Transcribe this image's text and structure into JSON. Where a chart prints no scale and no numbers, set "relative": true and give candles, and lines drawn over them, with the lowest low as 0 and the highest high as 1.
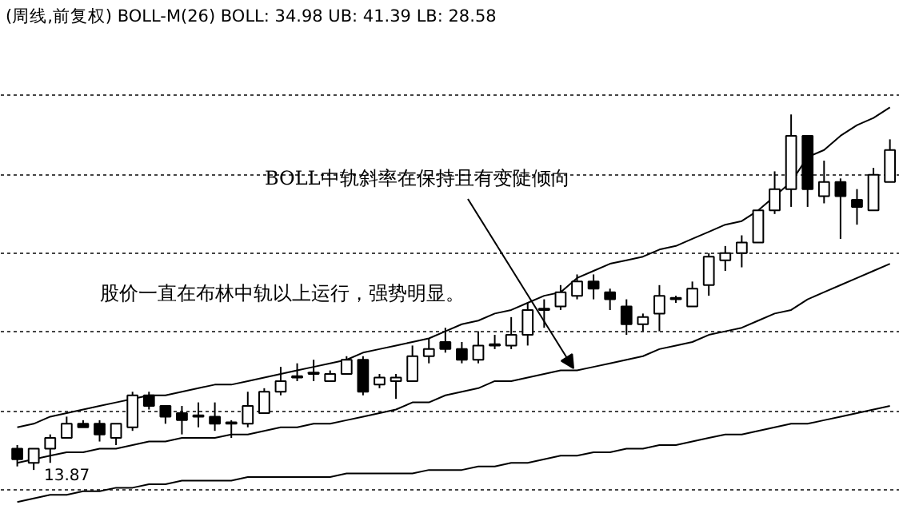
{
  "chart_data": {
    "type": "candlestick",
    "title": "(周线,前复权) BOLL-M(26) BOLL: 34.98 UB: 41.39 LB: 28.58",
    "relative": true,
    "grid": "y",
    "color": "#000000",
    "annotations": [
      "BOLL中轨斜率在保持且有变陡倾向",
      "股价一直在布林中轨以上运行，强势明显。",
      "13.87"
    ],
    "categories": [
      null,
      null,
      null,
      null,
      null,
      null,
      null,
      null,
      null,
      null,
      null,
      null,
      null,
      null,
      null,
      null,
      null,
      null,
      null,
      null,
      null,
      null,
      null,
      null,
      null,
      null,
      null,
      null,
      null,
      null,
      null,
      null,
      null,
      null,
      null,
      null,
      null,
      null,
      null,
      null,
      null,
      null,
      null,
      null,
      null,
      null,
      null,
      null,
      null,
      null,
      null,
      null,
      null,
      null
    ],
    "ohlc": [
      [
        0.06,
        0.07,
        0.01,
        0.03
      ],
      [
        0.02,
        0.06,
        0,
        0.06
      ],
      [
        0.06,
        0.1,
        0.02,
        0.09
      ],
      [
        0.09,
        0.15,
        0.09,
        0.13
      ],
      [
        0.13,
        0.14,
        0.12,
        0.12
      ],
      [
        0.13,
        0.14,
        0.08,
        0.1
      ],
      [
        0.09,
        0.13,
        0.07,
        0.13
      ],
      [
        0.12,
        0.22,
        0.11,
        0.21
      ],
      [
        0.21,
        0.22,
        0.17,
        0.18
      ],
      [
        0.18,
        0.18,
        0.13,
        0.15
      ],
      [
        0.16,
        0.18,
        0.1,
        0.14
      ],
      [
        0.15,
        0.19,
        0.12,
        0.15
      ],
      [
        0.15,
        0.19,
        0.11,
        0.13
      ],
      [
        0.13,
        0.14,
        0.09,
        0.13
      ],
      [
        0.13,
        0.22,
        0.12,
        0.18
      ],
      [
        0.16,
        0.23,
        0.16,
        0.22
      ],
      [
        0.22,
        0.29,
        0.21,
        0.25
      ],
      [
        0.26,
        0.3,
        0.25,
        0.26
      ],
      [
        0.27,
        0.31,
        0.25,
        0.27
      ],
      [
        0.25,
        0.28,
        0.25,
        0.27
      ],
      [
        0.27,
        0.32,
        0.27,
        0.31
      ],
      [
        0.31,
        0.32,
        0.21,
        0.22
      ],
      [
        0.24,
        0.27,
        0.23,
        0.26
      ],
      [
        0.25,
        0.27,
        0.2,
        0.26
      ],
      [
        0.25,
        0.35,
        0.25,
        0.32
      ],
      [
        0.32,
        0.37,
        0.3,
        0.34
      ],
      [
        0.36,
        0.4,
        0.33,
        0.34
      ],
      [
        0.34,
        0.36,
        0.3,
        0.31
      ],
      [
        0.31,
        0.39,
        0.3,
        0.35
      ],
      [
        0.35,
        0.38,
        0.34,
        0.35
      ],
      [
        0.35,
        0.43,
        0.34,
        0.38
      ],
      [
        0.38,
        0.47,
        0.35,
        0.45
      ],
      [
        0.45,
        0.48,
        0.4,
        0.45
      ],
      [
        0.46,
        0.52,
        0.45,
        0.5
      ],
      [
        0.49,
        0.55,
        0.48,
        0.53
      ],
      [
        0.53,
        0.55,
        0.48,
        0.51
      ],
      [
        0.5,
        0.51,
        0.45,
        0.48
      ],
      [
        0.46,
        0.48,
        0.38,
        0.41
      ],
      [
        0.41,
        0.44,
        0.39,
        0.43
      ],
      [
        0.44,
        0.52,
        0.39,
        0.49
      ],
      [
        0.48,
        0.49,
        0.47,
        0.48
      ],
      [
        0.46,
        0.53,
        0.46,
        0.51
      ],
      [
        0.52,
        0.61,
        0.49,
        0.6
      ],
      [
        0.59,
        0.63,
        0.56,
        0.61
      ],
      [
        0.61,
        0.66,
        0.57,
        0.64
      ],
      [
        0.64,
        0.73,
        0.64,
        0.73
      ],
      [
        0.73,
        0.84,
        0.72,
        0.79
      ],
      [
        0.79,
        1,
        0.74,
        0.94
      ],
      [
        0.94,
        0.94,
        0.74,
        0.79
      ],
      [
        0.77,
        0.87,
        0.75,
        0.81
      ],
      [
        0.81,
        0.82,
        0.65,
        0.77
      ],
      [
        0.76,
        0.79,
        0.69,
        0.74
      ],
      [
        0.73,
        0.85,
        0.73,
        0.83
      ],
      [
        0.81,
        0.93,
        0.81,
        0.9
      ]
    ],
    "series": [
      {
        "type": "line",
        "color": "#000000",
        "values": [
          0.12,
          0.13,
          0.15,
          0.16,
          0.17,
          0.18,
          0.19,
          0.2,
          0.21,
          0.21,
          0.22,
          0.23,
          0.24,
          0.24,
          0.25,
          0.26,
          0.27,
          0.28,
          0.29,
          0.3,
          0.31,
          0.33,
          0.34,
          0.35,
          0.36,
          0.37,
          0.39,
          0.41,
          0.42,
          0.44,
          0.45,
          0.47,
          0.49,
          0.5,
          0.54,
          0.56,
          0.58,
          0.59,
          0.6,
          0.62,
          0.63,
          0.65,
          0.67,
          0.69,
          0.7,
          0.73,
          0.77,
          0.81,
          0.88,
          0.9,
          0.94,
          0.97,
          0.99,
          1.02
        ]
      },
      {
        "type": "line",
        "color": "#000000",
        "values": [
          0.02,
          0.03,
          0.04,
          0.05,
          0.05,
          0.06,
          0.06,
          0.07,
          0.08,
          0.08,
          0.09,
          0.09,
          0.09,
          0.1,
          0.1,
          0.11,
          0.12,
          0.12,
          0.13,
          0.13,
          0.14,
          0.15,
          0.16,
          0.17,
          0.19,
          0.19,
          0.21,
          0.22,
          0.23,
          0.25,
          0.25,
          0.26,
          0.27,
          0.28,
          0.28,
          0.29,
          0.3,
          0.31,
          0.32,
          0.34,
          0.35,
          0.36,
          0.38,
          0.39,
          0.4,
          0.42,
          0.44,
          0.45,
          0.48,
          0.5,
          0.52,
          0.54,
          0.56,
          0.58
        ]
      },
      {
        "type": "line",
        "color": "#000000",
        "values": [
          -0.09,
          -0.08,
          -0.07,
          -0.07,
          -0.06,
          -0.06,
          -0.05,
          -0.05,
          -0.04,
          -0.04,
          -0.03,
          -0.03,
          -0.03,
          -0.03,
          -0.02,
          -0.02,
          -0.02,
          -0.02,
          -0.02,
          -0.02,
          -0.01,
          -0.01,
          -0.01,
          -0.01,
          -0.01,
          0,
          0,
          0,
          0.01,
          0.01,
          0.02,
          0.02,
          0.03,
          0.04,
          0.04,
          0.05,
          0.05,
          0.06,
          0.06,
          0.07,
          0.07,
          0.08,
          0.09,
          0.1,
          0.1,
          0.11,
          0.12,
          0.13,
          0.13,
          0.14,
          0.15,
          0.16,
          0.17,
          0.18
        ]
      }
    ]
  }
}
